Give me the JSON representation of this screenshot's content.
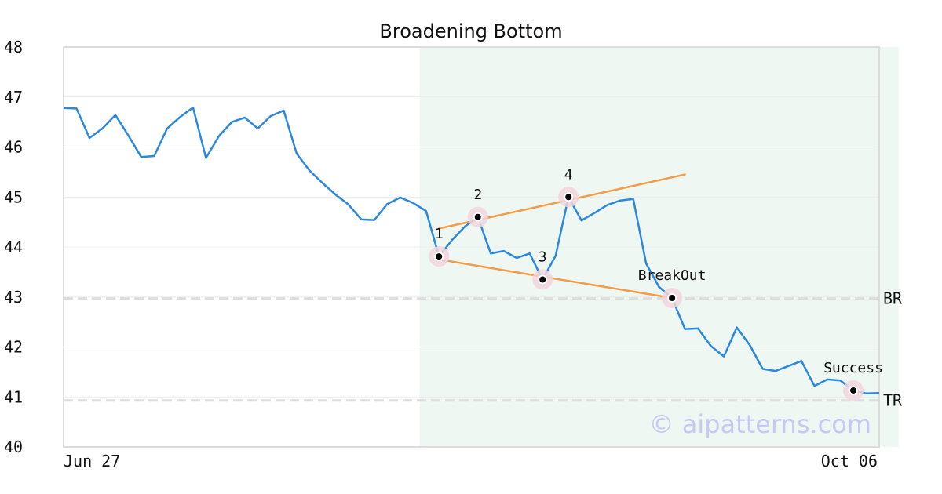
{
  "chart_data": {
    "type": "line",
    "title": "Broadening Bottom",
    "xlabel": "",
    "ylabel": "",
    "ylim": [
      40,
      48
    ],
    "yticks": [
      "40",
      "41",
      "42",
      "43",
      "44",
      "45",
      "46",
      "47",
      "48"
    ],
    "xticks": [
      {
        "index": 0,
        "label": "Jun 27"
      },
      {
        "index": 71,
        "label": "Oct 06"
      }
    ],
    "grid": true,
    "colors": {
      "price": "#2b88e0",
      "trendline": "#f39c48",
      "highlight": "#eff7f3",
      "marker_ring": "#f1d6dc",
      "reference": "#dddddd"
    },
    "series": [
      {
        "values": [
          46.78,
          46.77,
          46.18,
          46.37,
          46.64,
          46.23,
          45.8,
          45.82,
          46.37,
          46.6,
          46.79,
          45.78,
          46.22,
          46.5,
          46.59,
          46.37,
          46.62,
          46.73,
          45.87,
          45.53,
          45.28,
          45.05,
          44.85,
          44.55,
          44.54,
          44.86,
          44.99,
          44.88,
          44.72,
          43.81,
          44.14,
          44.41,
          44.6,
          43.87,
          43.92,
          43.78,
          43.87,
          43.35,
          43.82,
          45.0,
          44.53,
          44.68,
          44.84,
          44.93,
          44.96,
          43.67,
          43.2,
          42.98,
          42.36,
          42.37,
          42.02,
          41.81,
          42.39,
          42.04,
          41.56,
          41.52,
          41.62,
          41.72,
          41.22,
          41.35,
          41.33,
          41.13,
          41.07,
          41.08
        ]
      }
    ],
    "highlight_range": [
      27.5,
      64.5
    ],
    "reference_lines": [
      {
        "label": "BR",
        "value": 42.97
      },
      {
        "label": "TR",
        "value": 40.93
      }
    ],
    "trendlines": [
      {
        "from": [
          29,
          44.37
        ],
        "to": [
          48,
          45.45
        ]
      },
      {
        "from": [
          29,
          43.75
        ],
        "to": [
          47,
          42.98
        ]
      }
    ],
    "points": [
      {
        "label": "1",
        "x": 29,
        "y": 43.81
      },
      {
        "label": "2",
        "x": 32,
        "y": 44.6
      },
      {
        "label": "3",
        "x": 37,
        "y": 43.35
      },
      {
        "label": "4",
        "x": 39,
        "y": 45.0
      },
      {
        "label": "BreakOut",
        "x": 47,
        "y": 42.98
      },
      {
        "label": "Success",
        "x": 61,
        "y": 41.13
      }
    ]
  },
  "watermark": "© aipatterns.com"
}
